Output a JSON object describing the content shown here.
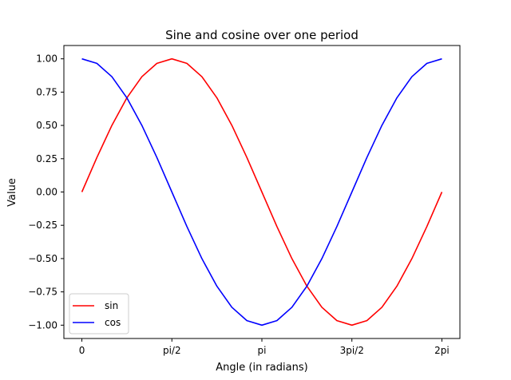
{
  "chart_data": {
    "type": "line",
    "title": "Sine and cosine over one period",
    "xlabel": "Angle (in radians)",
    "ylabel": "Value",
    "x": [
      0,
      0.2618,
      0.5236,
      0.7854,
      1.0472,
      1.309,
      1.5708,
      1.8326,
      2.0944,
      2.3562,
      2.618,
      2.8798,
      3.1416,
      3.4034,
      3.6652,
      3.927,
      4.1888,
      4.4506,
      4.7124,
      4.9742,
      5.236,
      5.4978,
      5.7596,
      6.0214,
      6.2832
    ],
    "series": [
      {
        "name": "sin",
        "color": "#ff0000",
        "values": [
          0,
          0.2588,
          0.5,
          0.7071,
          0.866,
          0.9659,
          1,
          0.9659,
          0.866,
          0.7071,
          0.5,
          0.2588,
          0,
          -0.2588,
          -0.5,
          -0.7071,
          -0.866,
          -0.9659,
          -1,
          -0.9659,
          -0.866,
          -0.7071,
          -0.5,
          -0.2588,
          0
        ]
      },
      {
        "name": "cos",
        "color": "#0000ff",
        "values": [
          1,
          0.9659,
          0.866,
          0.7071,
          0.5,
          0.2588,
          0,
          -0.2588,
          -0.5,
          -0.7071,
          -0.866,
          -0.9659,
          -1,
          -0.9659,
          -0.866,
          -0.7071,
          -0.5,
          -0.2588,
          0,
          0.2588,
          0.5,
          0.7071,
          0.866,
          0.9659,
          1
        ]
      }
    ],
    "xticks": [
      {
        "value": 0,
        "label": "0"
      },
      {
        "value": 1.5708,
        "label": "pi/2"
      },
      {
        "value": 3.1416,
        "label": "pi"
      },
      {
        "value": 4.7124,
        "label": "3pi/2"
      },
      {
        "value": 6.2832,
        "label": "2pi"
      }
    ],
    "yticks": [
      {
        "value": 1,
        "label": "1.00"
      },
      {
        "value": 0.75,
        "label": "0.75"
      },
      {
        "value": 0.5,
        "label": "0.50"
      },
      {
        "value": 0.25,
        "label": "0.25"
      },
      {
        "value": 0,
        "label": "0.00"
      },
      {
        "value": -0.25,
        "label": "−0.25"
      },
      {
        "value": -0.5,
        "label": "−0.50"
      },
      {
        "value": -0.75,
        "label": "−0.75"
      },
      {
        "value": -1,
        "label": "−1.00"
      }
    ],
    "xlim": [
      -0.3142,
      6.5974
    ],
    "ylim": [
      -1.1,
      1.1
    ],
    "grid": false,
    "legend_position": "lower-left",
    "legend": [
      {
        "label": "sin",
        "color": "#ff0000"
      },
      {
        "label": "cos",
        "color": "#0000ff"
      }
    ]
  }
}
